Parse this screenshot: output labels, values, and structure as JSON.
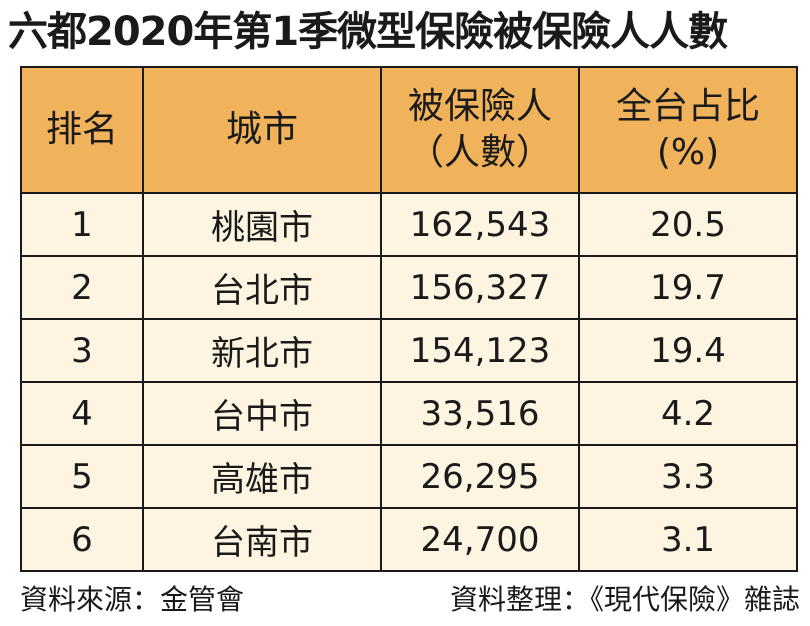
{
  "title": "六都2020年第1季微型保險被保險人人數",
  "table": {
    "headers": {
      "rank": "排名",
      "city": "城市",
      "count_line1": "被保險人",
      "count_line2": "（人數）",
      "share_line1": "全台占比",
      "share_line2": "(%)"
    },
    "rows": [
      {
        "rank": "1",
        "city": "桃園市",
        "count": "162,543",
        "share": "20.5"
      },
      {
        "rank": "2",
        "city": "台北市",
        "count": "156,327",
        "share": "19.7"
      },
      {
        "rank": "3",
        "city": "新北市",
        "count": "154,123",
        "share": "19.4"
      },
      {
        "rank": "4",
        "city": "台中市",
        "count": "33,516",
        "share": "4.2"
      },
      {
        "rank": "5",
        "city": "高雄市",
        "count": "26,295",
        "share": "3.3"
      },
      {
        "rank": "6",
        "city": "台南市",
        "count": "24,700",
        "share": "3.1"
      }
    ]
  },
  "footer": {
    "source": "資料來源：金管會",
    "compiled_by": "資料整理：《現代保險》雜誌"
  },
  "colors": {
    "header_bg": "#f0b25a",
    "row_bg": "#fdf4e2",
    "border": "#1a1a1a"
  }
}
